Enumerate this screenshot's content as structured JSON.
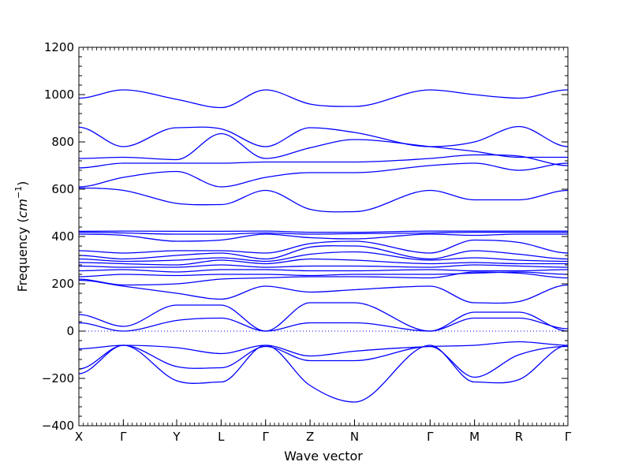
{
  "chart_data": {
    "type": "line",
    "xlabel": "Wave vector",
    "ylabel": "Frequency ($cm^{-1}$)",
    "ylabel_parts": {
      "prefix": "Frequency (",
      "unit": "cm",
      "exp": "−1",
      "suffix": ")"
    },
    "ylim": [
      -400,
      1200
    ],
    "yticks": [
      -400,
      -200,
      0,
      200,
      400,
      600,
      800,
      1000,
      1200
    ],
    "ytick_labels": [
      "−400",
      "−200",
      "0",
      "200",
      "400",
      "600",
      "800",
      "1000",
      "1200"
    ],
    "xlim": [
      0,
      11
    ],
    "x_ticks": [
      {
        "label": "X",
        "x": 0
      },
      {
        "label": "Γ",
        "x": 1
      },
      {
        "label": "Y",
        "x": 2.2
      },
      {
        "label": "L",
        "x": 3.2
      },
      {
        "label": "Γ",
        "x": 4.2
      },
      {
        "label": "Z",
        "x": 5.2
      },
      {
        "label": "N",
        "x": 6.2
      },
      {
        "label": "Γ",
        "x": 7.9
      },
      {
        "label": "M",
        "x": 8.9
      },
      {
        "label": "R",
        "x": 9.9
      },
      {
        "label": "Γ",
        "x": 11
      }
    ],
    "grid": false,
    "zero_line": true,
    "line_color": "#0000ff",
    "zero_line_color": "#0000ff",
    "series": [
      {
        "x": [
          0,
          1,
          2.2,
          3.2,
          4.2,
          5.2,
          6.2,
          7.9,
          8.9,
          9.9,
          11
        ],
        "y": [
          985,
          1020,
          980,
          945,
          1020,
          960,
          950,
          1020,
          1000,
          985,
          1020
        ]
      },
      {
        "x": [
          0,
          1,
          2.2,
          3.2,
          4.2,
          5.2,
          6.2,
          7.9,
          8.9,
          9.9,
          11
        ],
        "y": [
          862,
          780,
          860,
          855,
          780,
          860,
          840,
          780,
          800,
          865,
          780
        ]
      },
      {
        "x": [
          0,
          1,
          2.2,
          3.2,
          4.2,
          5.2,
          6.2,
          7.9,
          8.9,
          9.9,
          11
        ],
        "y": [
          730,
          735,
          725,
          835,
          730,
          775,
          810,
          780,
          760,
          735,
          735
        ]
      },
      {
        "x": [
          0,
          1,
          2.2,
          3.2,
          4.2,
          5.2,
          6.2,
          7.9,
          8.9,
          9.9,
          11
        ],
        "y": [
          690,
          710,
          710,
          710,
          715,
          715,
          715,
          730,
          745,
          740,
          700
        ]
      },
      {
        "x": [
          0,
          1,
          2.2,
          3.2,
          4.2,
          5.2,
          6.2,
          7.9,
          8.9,
          9.9,
          11
        ],
        "y": [
          610,
          650,
          675,
          610,
          650,
          670,
          670,
          700,
          710,
          680,
          710
        ]
      },
      {
        "x": [
          0,
          1,
          2.2,
          3.2,
          4.2,
          5.2,
          6.2,
          7.9,
          8.9,
          9.9,
          11
        ],
        "y": [
          605,
          595,
          540,
          535,
          595,
          515,
          505,
          595,
          555,
          555,
          595
        ]
      },
      {
        "x": [
          0,
          1,
          2.2,
          3.2,
          4.2,
          5.2,
          6.2,
          7.9,
          8.9,
          9.9,
          11
        ],
        "y": [
          422,
          423,
          422,
          422,
          423,
          418,
          418,
          423,
          423,
          423,
          423
        ]
      },
      {
        "x": [
          0,
          1,
          2.2,
          3.2,
          4.2,
          5.2,
          6.2,
          7.9,
          8.9,
          9.9,
          11
        ],
        "y": [
          418,
          415,
          410,
          410,
          415,
          410,
          412,
          415,
          418,
          418,
          418
        ]
      },
      {
        "x": [
          0,
          1,
          2.2,
          3.2,
          4.2,
          5.2,
          6.2,
          7.9,
          8.9,
          9.9,
          11
        ],
        "y": [
          410,
          405,
          380,
          385,
          410,
          395,
          390,
          410,
          405,
          410,
          410
        ]
      },
      {
        "x": [
          0,
          1,
          2.2,
          3.2,
          4.2,
          5.2,
          6.2,
          7.9,
          8.9,
          9.9,
          11
        ],
        "y": [
          340,
          330,
          340,
          340,
          330,
          370,
          380,
          330,
          385,
          375,
          330
        ]
      },
      {
        "x": [
          0,
          1,
          2.2,
          3.2,
          4.2,
          5.2,
          6.2,
          7.9,
          8.9,
          9.9,
          11
        ],
        "y": [
          320,
          305,
          320,
          330,
          305,
          355,
          360,
          305,
          340,
          325,
          305
        ]
      },
      {
        "x": [
          0,
          1,
          2.2,
          3.2,
          4.2,
          5.2,
          6.2,
          7.9,
          8.9,
          9.9,
          11
        ],
        "y": [
          305,
          295,
          300,
          310,
          295,
          325,
          335,
          300,
          310,
          300,
          295
        ]
      },
      {
        "x": [
          0,
          1,
          2.2,
          3.2,
          4.2,
          5.2,
          6.2,
          7.9,
          8.9,
          9.9,
          11
        ],
        "y": [
          290,
          285,
          280,
          300,
          285,
          305,
          300,
          285,
          290,
          285,
          285
        ]
      },
      {
        "x": [
          0,
          1,
          2.2,
          3.2,
          4.2,
          5.2,
          6.2,
          7.9,
          8.9,
          9.9,
          11
        ],
        "y": [
          275,
          270,
          270,
          280,
          270,
          275,
          275,
          270,
          280,
          275,
          270
        ]
      },
      {
        "x": [
          0,
          1,
          2.2,
          3.2,
          4.2,
          5.2,
          6.2,
          7.9,
          8.9,
          9.9,
          11
        ],
        "y": [
          255,
          260,
          250,
          260,
          260,
          255,
          255,
          260,
          255,
          255,
          260
        ]
      },
      {
        "x": [
          0,
          1,
          2.2,
          3.2,
          4.2,
          5.2,
          6.2,
          7.9,
          8.9,
          9.9,
          11
        ],
        "y": [
          230,
          240,
          235,
          240,
          240,
          235,
          240,
          240,
          245,
          250,
          240
        ]
      },
      {
        "x": [
          0,
          1,
          2.2,
          3.2,
          4.2,
          5.2,
          6.2,
          7.9,
          8.9,
          9.9,
          11
        ],
        "y": [
          220,
          195,
          200,
          220,
          225,
          230,
          230,
          225,
          250,
          245,
          225
        ]
      },
      {
        "x": [
          0,
          1,
          2.2,
          3.2,
          4.2,
          5.2,
          6.2,
          7.9,
          8.9,
          9.9,
          11
        ],
        "y": [
          215,
          190,
          160,
          135,
          190,
          165,
          175,
          190,
          120,
          125,
          195
        ]
      },
      {
        "x": [
          0,
          1,
          2.2,
          3.2,
          4.2,
          5.2,
          6.2,
          7.9,
          8.9,
          9.9,
          11
        ],
        "y": [
          70,
          20,
          110,
          110,
          0,
          120,
          120,
          0,
          80,
          80,
          0
        ]
      },
      {
        "x": [
          0,
          1,
          2.2,
          3.2,
          4.2,
          5.2,
          6.2,
          7.9,
          8.9,
          9.9,
          11
        ],
        "y": [
          35,
          0,
          45,
          55,
          0,
          35,
          35,
          0,
          55,
          55,
          10
        ]
      },
      {
        "x": [
          0,
          1,
          2.2,
          3.2,
          4.2,
          5.2,
          6.2,
          7.9,
          8.9,
          9.9,
          11
        ],
        "y": [
          -75,
          -60,
          -70,
          -95,
          -60,
          -105,
          -85,
          -65,
          -60,
          -45,
          -60
        ]
      },
      {
        "x": [
          0,
          1,
          2.2,
          3.2,
          4.2,
          5.2,
          6.2,
          7.9,
          8.9,
          9.9,
          11
        ],
        "y": [
          -160,
          -60,
          -150,
          -155,
          -65,
          -125,
          -125,
          -65,
          -195,
          -100,
          -65
        ]
      },
      {
        "x": [
          0,
          1,
          2.2,
          3.2,
          4.2,
          5.2,
          6.2,
          7.9,
          8.9,
          9.9,
          11
        ],
        "y": [
          -180,
          -60,
          -210,
          -215,
          -60,
          -230,
          -300,
          -60,
          -215,
          -205,
          -60
        ]
      }
    ]
  }
}
